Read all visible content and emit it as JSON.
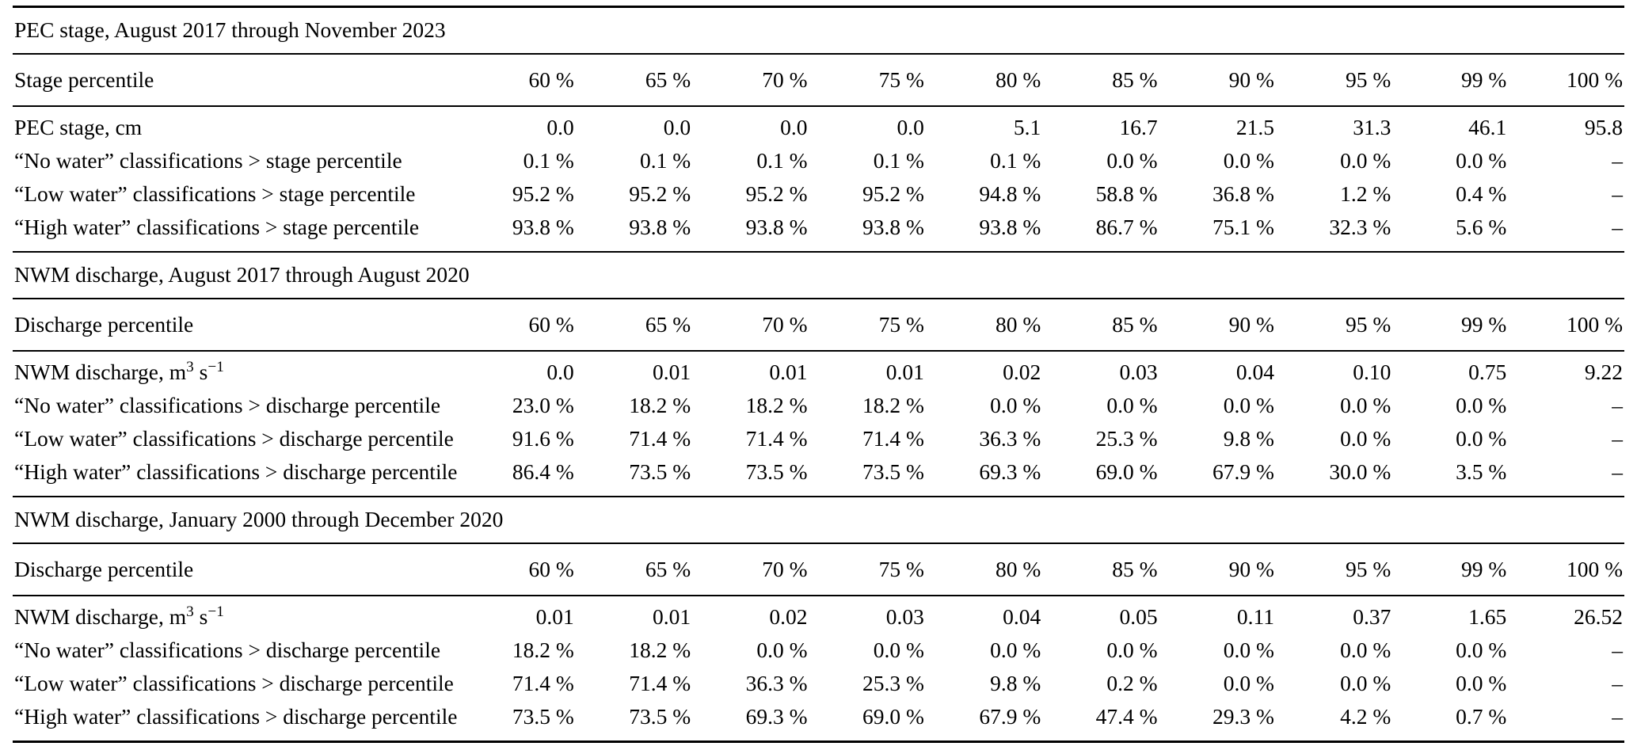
{
  "table": {
    "sections": [
      {
        "title": "PEC stage, August 2017 through November 2023",
        "header_label": "Stage percentile",
        "columns": [
          "60 %",
          "65 %",
          "70 %",
          "75 %",
          "80 %",
          "85 %",
          "90 %",
          "95 %",
          "99 %",
          "100 %"
        ],
        "rows": [
          {
            "label": "PEC stage, cm",
            "values": [
              "0.0",
              "0.0",
              "0.0",
              "0.0",
              "5.1",
              "16.7",
              "21.5",
              "31.3",
              "46.1",
              "95.8"
            ]
          },
          {
            "label": "“No water” classifications > stage percentile",
            "values": [
              "0.1 %",
              "0.1 %",
              "0.1 %",
              "0.1 %",
              "0.1 %",
              "0.0 %",
              "0.0 %",
              "0.0 %",
              "0.0 %",
              "–"
            ]
          },
          {
            "label": "“Low water” classifications > stage percentile",
            "values": [
              "95.2 %",
              "95.2 %",
              "95.2 %",
              "95.2 %",
              "94.8 %",
              "58.8 %",
              "36.8 %",
              "1.2 %",
              "0.4 %",
              "–"
            ]
          },
          {
            "label": "“High water” classifications > stage percentile",
            "values": [
              "93.8 %",
              "93.8 %",
              "93.8 %",
              "93.8 %",
              "93.8 %",
              "86.7 %",
              "75.1 %",
              "32.3 %",
              "5.6 %",
              "–"
            ]
          }
        ]
      },
      {
        "title": "NWM discharge, August 2017 through August 2020",
        "header_label": "Discharge percentile",
        "columns": [
          "60 %",
          "65 %",
          "70 %",
          "75 %",
          "80 %",
          "85 %",
          "90 %",
          "95 %",
          "99 %",
          "100 %"
        ],
        "rows": [
          {
            "label_parts": {
              "p1": "NWM discharge, m",
              "sup1": "3",
              "p2": " s",
              "sup2": "−1"
            },
            "values": [
              "0.0",
              "0.01",
              "0.01",
              "0.01",
              "0.02",
              "0.03",
              "0.04",
              "0.10",
              "0.75",
              "9.22"
            ]
          },
          {
            "label": "“No water” classifications > discharge percentile",
            "values": [
              "23.0 %",
              "18.2 %",
              "18.2 %",
              "18.2 %",
              "0.0 %",
              "0.0 %",
              "0.0 %",
              "0.0 %",
              "0.0 %",
              "–"
            ]
          },
          {
            "label": "“Low water” classifications > discharge percentile",
            "values": [
              "91.6 %",
              "71.4 %",
              "71.4 %",
              "71.4 %",
              "36.3 %",
              "25.3 %",
              "9.8 %",
              "0.0 %",
              "0.0 %",
              "–"
            ]
          },
          {
            "label": "“High water” classifications > discharge percentile",
            "values": [
              "86.4 %",
              "73.5 %",
              "73.5 %",
              "73.5 %",
              "69.3 %",
              "69.0 %",
              "67.9 %",
              "30.0 %",
              "3.5 %",
              "–"
            ]
          }
        ]
      },
      {
        "title": "NWM discharge, January 2000 through December 2020",
        "header_label": "Discharge percentile",
        "columns": [
          "60 %",
          "65 %",
          "70 %",
          "75 %",
          "80 %",
          "85 %",
          "90 %",
          "95 %",
          "99 %",
          "100 %"
        ],
        "rows": [
          {
            "label_parts": {
              "p1": "NWM discharge, m",
              "sup1": "3",
              "p2": " s",
              "sup2": "−1"
            },
            "values": [
              "0.01",
              "0.01",
              "0.02",
              "0.03",
              "0.04",
              "0.05",
              "0.11",
              "0.37",
              "1.65",
              "26.52"
            ]
          },
          {
            "label": "“No water” classifications > discharge percentile",
            "values": [
              "18.2 %",
              "18.2 %",
              "0.0 %",
              "0.0 %",
              "0.0 %",
              "0.0 %",
              "0.0 %",
              "0.0 %",
              "0.0 %",
              "–"
            ]
          },
          {
            "label": "“Low water” classifications > discharge percentile",
            "values": [
              "71.4 %",
              "71.4 %",
              "36.3 %",
              "25.3 %",
              "9.8 %",
              "0.2 %",
              "0.0 %",
              "0.0 %",
              "0.0 %",
              "–"
            ]
          },
          {
            "label": "“High water” classifications > discharge percentile",
            "values": [
              "73.5 %",
              "73.5 %",
              "69.3 %",
              "69.0 %",
              "67.9 %",
              "47.4 %",
              "29.3 %",
              "4.2 %",
              "0.7 %",
              "–"
            ]
          }
        ]
      }
    ]
  }
}
